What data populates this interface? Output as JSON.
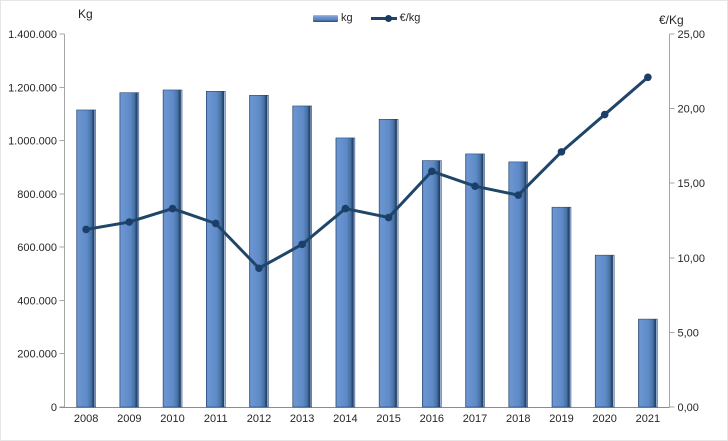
{
  "chart_data": {
    "type": "bar+line",
    "categories": [
      "2008",
      "2009",
      "2010",
      "2011",
      "2012",
      "2013",
      "2014",
      "2015",
      "2016",
      "2017",
      "2018",
      "2019",
      "2020",
      "2021"
    ],
    "series": [
      {
        "name": "kg",
        "type": "bar",
        "axis": "left",
        "values": [
          1115000,
          1180000,
          1190000,
          1185000,
          1170000,
          1130000,
          1010000,
          1080000,
          925000,
          950000,
          920000,
          750000,
          570000,
          330000
        ]
      },
      {
        "name": "€/kg",
        "type": "line",
        "axis": "right",
        "values": [
          11.9,
          12.4,
          13.3,
          12.3,
          9.3,
          10.9,
          13.3,
          12.7,
          15.8,
          14.8,
          14.2,
          17.1,
          19.6,
          22.1
        ]
      }
    ],
    "left_axis": {
      "title": "Kg",
      "min": 0,
      "max": 1400000,
      "step": 200000,
      "tick_labels": [
        "0",
        "200.000",
        "400.000",
        "600.000",
        "800.000",
        "1.000.000",
        "1.200.000",
        "1.400.000"
      ]
    },
    "right_axis": {
      "title": "€/Kg",
      "min": 0,
      "max": 25,
      "step": 5,
      "tick_labels": [
        "0,00",
        "5,00",
        "10,00",
        "15,00",
        "20,00",
        "25,00"
      ]
    },
    "legend": [
      {
        "label": "kg",
        "series_type": "bar"
      },
      {
        "label": "€/kg",
        "series_type": "line"
      }
    ],
    "legend_position": "top-center",
    "grid": false,
    "colors": {
      "bar_fill": "#5e8ac8",
      "bar_edge_light": "#6b96d1",
      "bar_edge_dark": "#223e66",
      "line": "#1f4569",
      "marker": "#1b3f68",
      "axis": "#a6a6a6",
      "text": "#262626"
    }
  }
}
